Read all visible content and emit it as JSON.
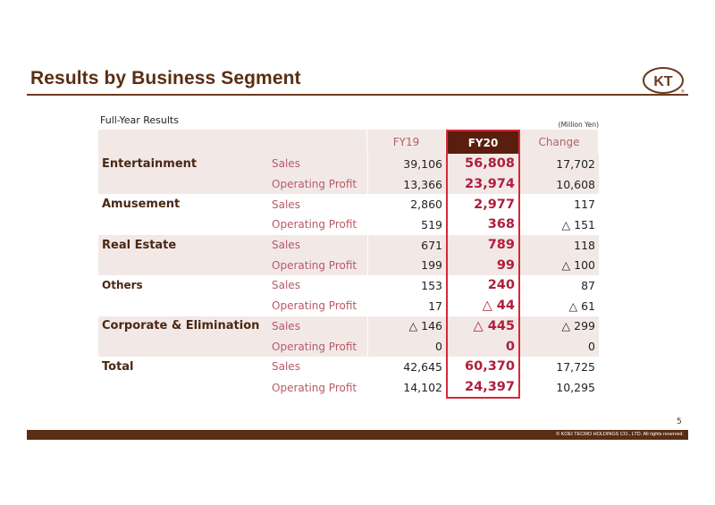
{
  "page": {
    "title": "Results by Business Segment",
    "caption": "Full-Year Results",
    "unit": "(Million Yen)",
    "page_number": "5",
    "copyright": "© KOEI TECMO HOLDINGS CO., LTD. All rights reserved.",
    "logo_text": "KT",
    "colors": {
      "brand": "#5a2e14",
      "highlight_border": "#d22a3a",
      "highlight_text": "#b01e3c",
      "row_shade": "#f2e9e7"
    }
  },
  "table": {
    "columns": [
      "",
      "",
      "FY19",
      "FY20",
      "Change"
    ],
    "rows": [
      {
        "segment": "Entertainment",
        "item": "Sales",
        "fy19": "39,106",
        "fy20": "56,808",
        "change": "17,702"
      },
      {
        "segment": "",
        "item": "Operating Profit",
        "fy19": "13,366",
        "fy20": "23,974",
        "change": "10,608"
      },
      {
        "segment": "Amusement",
        "item": "Sales",
        "fy19": "2,860",
        "fy20": "2,977",
        "change": "117"
      },
      {
        "segment": "",
        "item": "Operating Profit",
        "fy19": "519",
        "fy20": "368",
        "change": "△ 151"
      },
      {
        "segment": "Real Estate",
        "item": "Sales",
        "fy19": "671",
        "fy20": "789",
        "change": "118"
      },
      {
        "segment": "",
        "item": "Operating Profit",
        "fy19": "199",
        "fy20": "99",
        "change": "△ 100"
      },
      {
        "segment": "Others",
        "item": "Sales",
        "fy19": "153",
        "fy20": "240",
        "change": "87"
      },
      {
        "segment": "",
        "item": "Operating Profit",
        "fy19": "17",
        "fy20": "△ 44",
        "change": "△ 61"
      },
      {
        "segment": "Corporate & Elimination",
        "item": "Sales",
        "fy19": "△ 146",
        "fy20": "△ 445",
        "change": "△ 299"
      },
      {
        "segment": "",
        "item": "Operating Profit",
        "fy19": "0",
        "fy20": "0",
        "change": "0"
      },
      {
        "segment": "Total",
        "item": "Sales",
        "fy19": "42,645",
        "fy20": "60,370",
        "change": "17,725"
      },
      {
        "segment": "",
        "item": "Operating Profit",
        "fy19": "14,102",
        "fy20": "24,397",
        "change": "10,295"
      }
    ]
  }
}
